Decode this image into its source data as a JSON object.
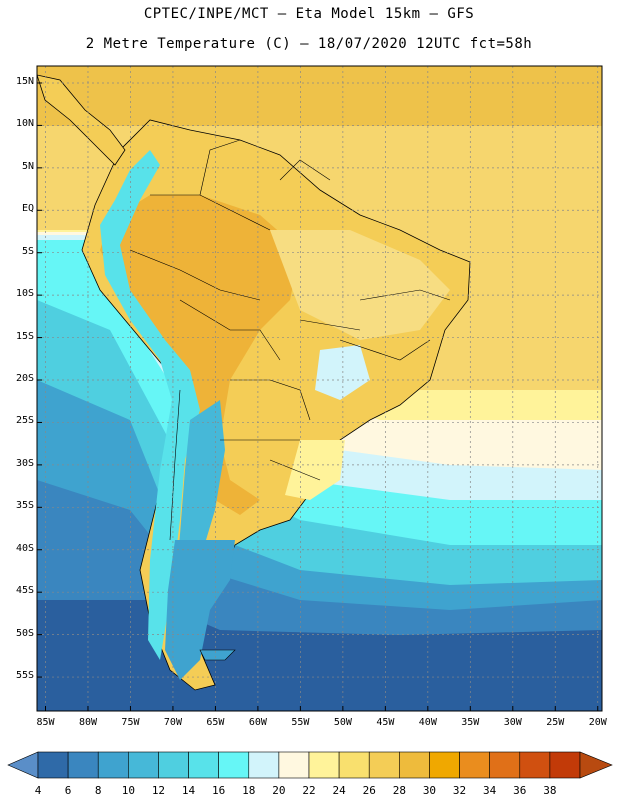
{
  "title": {
    "line1": "CPTEC/INPE/MCT –  Eta Model 15km – GFS",
    "line2": "2 Metre Temperature (C) – 18/07/2020 12UTC fct=58h"
  },
  "map": {
    "lat_labels": [
      "15N",
      "10N",
      "5N",
      "EQ",
      "5S",
      "10S",
      "15S",
      "20S",
      "25S",
      "30S",
      "35S",
      "40S",
      "45S",
      "50S",
      "55S"
    ],
    "lat_values": [
      15,
      10,
      5,
      0,
      -5,
      -10,
      -15,
      -20,
      -25,
      -30,
      -35,
      -40,
      -45,
      -50,
      -55
    ],
    "lon_labels": [
      "85W",
      "80W",
      "75W",
      "70W",
      "65W",
      "60W",
      "55W",
      "50W",
      "45W",
      "40W",
      "35W",
      "30W",
      "25W",
      "20W"
    ],
    "lon_values": [
      -85,
      -80,
      -75,
      -70,
      -65,
      -60,
      -55,
      -50,
      -45,
      -40,
      -35,
      -30,
      -25,
      -20
    ]
  },
  "colorbar": {
    "labels": [
      "4",
      "6",
      "8",
      "10",
      "12",
      "14",
      "16",
      "18",
      "20",
      "22",
      "24",
      "26",
      "28",
      "30",
      "32",
      "34",
      "36",
      "38"
    ],
    "colors": [
      "#5a8ec8",
      "#2f6aa8",
      "#3a86bf",
      "#3fa3cf",
      "#46b8d8",
      "#4fcfe0",
      "#58e2ea",
      "#66f6f6",
      "#d2f4fb",
      "#fff8e0",
      "#fff39a",
      "#f9e06e",
      "#f4cd56",
      "#eebb3c",
      "#f0a800",
      "#ea8d1e",
      "#e07018",
      "#d05010",
      "#c23a08",
      "#b84a10"
    ]
  },
  "legend_colors": {
    "ocean_far_south": "#2a5f9e",
    "ocean_south": "#3a80bd",
    "ocean_pacific": "#4ec6e0",
    "ocean_mid": "#64e4f0",
    "ocean_warm": "#fff8e0",
    "ocean_tropical": "#f6d66e",
    "land_amazon": "#eeb338",
    "land_east": "#f7dd82"
  }
}
